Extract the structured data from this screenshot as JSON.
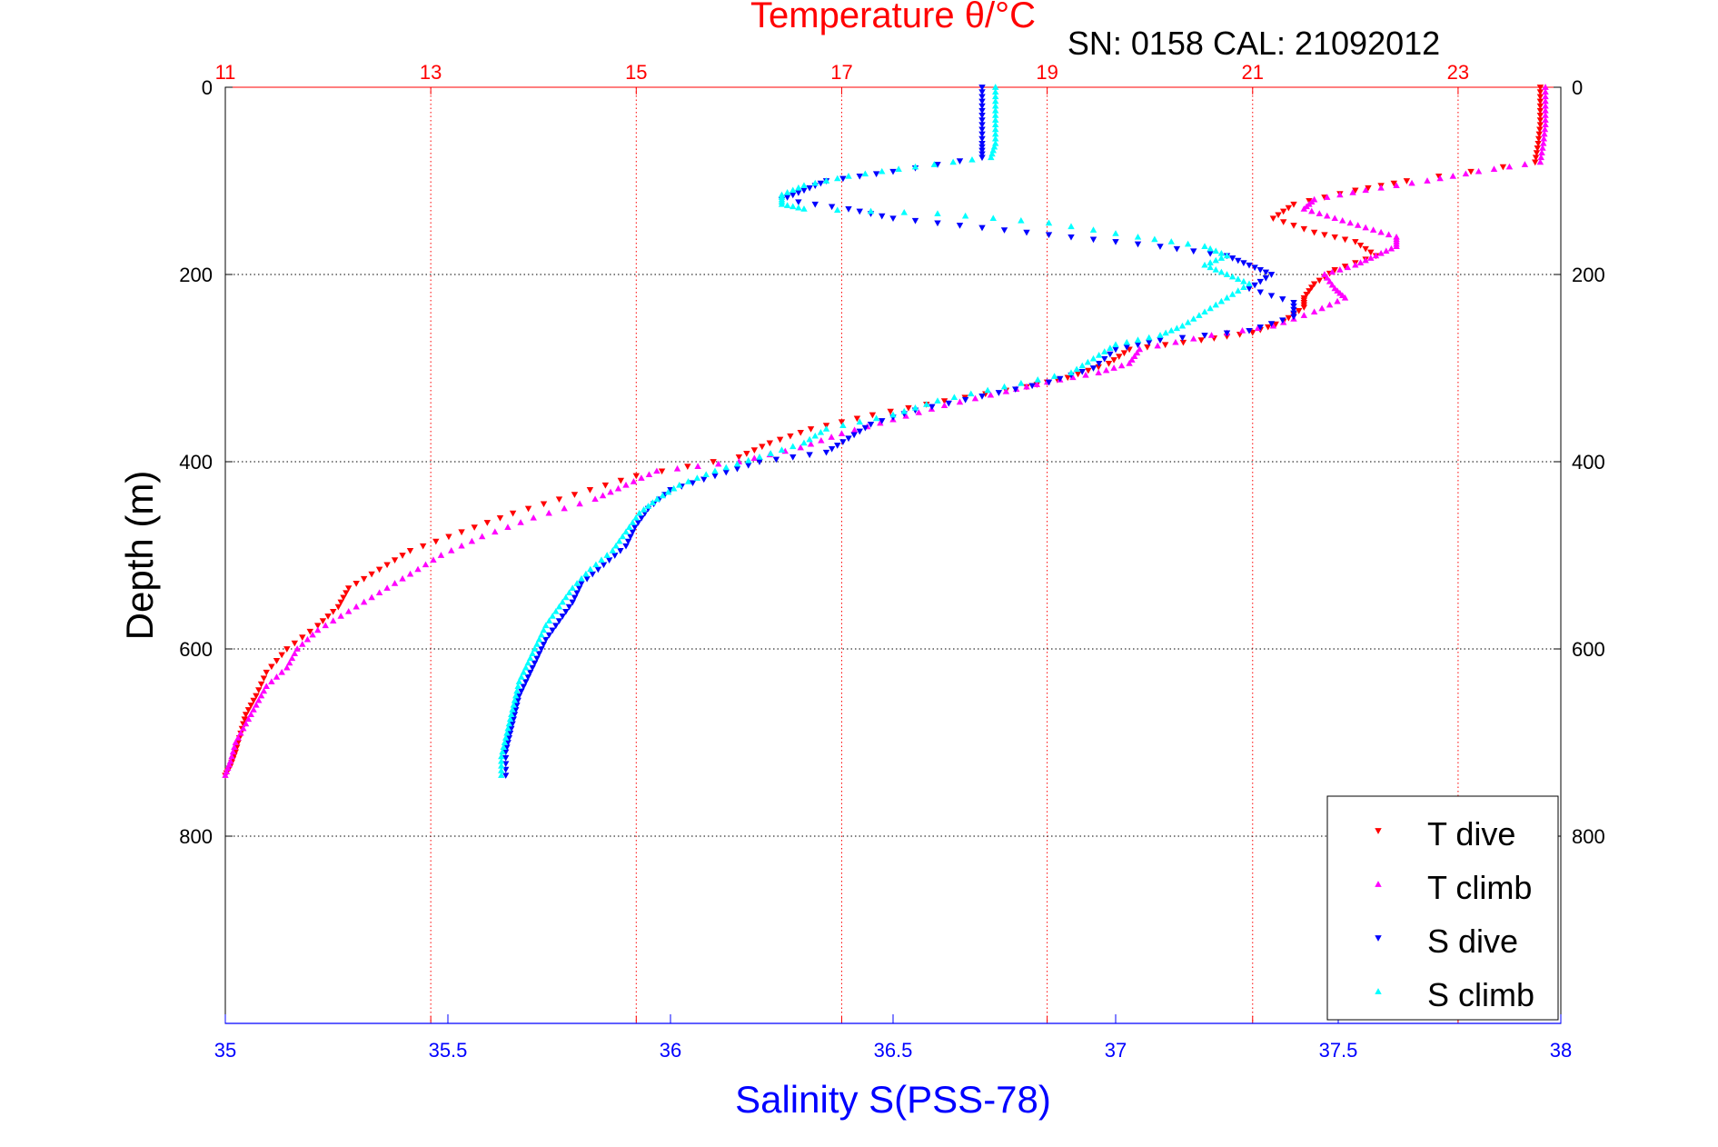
{
  "chart_data": {
    "type": "scatter",
    "title": "Temperature θ/°C",
    "subtitle": "SN: 0158  CAL: 21092012",
    "xlabel": "Salinity S(PSS-78)",
    "ylabel": "Depth (m)",
    "grid": true,
    "legend_position": "bottom-right",
    "colors": {
      "temperature_axis": "#ff0000",
      "salinity_axis": "#0000ff",
      "depth_axis": "#000000"
    },
    "axes": {
      "temperature": {
        "lim": [
          11,
          24
        ],
        "ticks": [
          "11",
          "13",
          "15",
          "17",
          "19",
          "21",
          "23"
        ]
      },
      "salinity": {
        "lim": [
          35,
          38
        ],
        "ticks": [
          "35",
          "35.5",
          "36",
          "36.5",
          "37",
          "37.5",
          "38"
        ]
      },
      "depth": {
        "lim": [
          0,
          1000
        ],
        "reversed": true,
        "ticks": [
          "0",
          "200",
          "400",
          "600",
          "800"
        ]
      }
    },
    "series": [
      {
        "name": "T dive",
        "axis": "temperature",
        "marker": "triangle-down",
        "color": "#ff0000",
        "points": [
          [
            23.8,
            0
          ],
          [
            23.8,
            20
          ],
          [
            23.8,
            40
          ],
          [
            23.78,
            60
          ],
          [
            23.75,
            80
          ],
          [
            22.5,
            100
          ],
          [
            22.0,
            110
          ],
          [
            21.4,
            125
          ],
          [
            21.2,
            140
          ],
          [
            21.6,
            155
          ],
          [
            22.0,
            165
          ],
          [
            22.2,
            180
          ],
          [
            21.8,
            195
          ],
          [
            21.6,
            210
          ],
          [
            21.5,
            225
          ],
          [
            21.5,
            235
          ],
          [
            21.3,
            250
          ],
          [
            21.0,
            262
          ],
          [
            20.5,
            270
          ],
          [
            19.8,
            280
          ],
          [
            19.6,
            295
          ],
          [
            19.2,
            310
          ],
          [
            18.8,
            320
          ],
          [
            18.0,
            335
          ],
          [
            17.3,
            350
          ],
          [
            16.7,
            365
          ],
          [
            16.3,
            380
          ],
          [
            16.0,
            395
          ],
          [
            15.0,
            415
          ],
          [
            14.4,
            435
          ],
          [
            13.8,
            455
          ],
          [
            13.3,
            475
          ],
          [
            12.8,
            495
          ],
          [
            12.5,
            515
          ],
          [
            12.2,
            535
          ],
          [
            12.1,
            555
          ],
          [
            11.9,
            575
          ],
          [
            11.6,
            600
          ],
          [
            11.4,
            625
          ],
          [
            11.3,
            650
          ],
          [
            11.2,
            670
          ],
          [
            11.15,
            690
          ],
          [
            11.1,
            710
          ],
          [
            11.05,
            725
          ],
          [
            11.0,
            735
          ]
        ]
      },
      {
        "name": "T climb",
        "axis": "temperature",
        "marker": "triangle-up",
        "color": "#ff00ff",
        "points": [
          [
            23.85,
            0
          ],
          [
            23.85,
            20
          ],
          [
            23.85,
            40
          ],
          [
            23.83,
            60
          ],
          [
            23.8,
            80
          ],
          [
            23.2,
            90
          ],
          [
            22.7,
            100
          ],
          [
            22.1,
            110
          ],
          [
            21.6,
            120
          ],
          [
            21.5,
            130
          ],
          [
            21.8,
            140
          ],
          [
            22.1,
            150
          ],
          [
            22.4,
            160
          ],
          [
            22.4,
            170
          ],
          [
            22.2,
            180
          ],
          [
            22.0,
            190
          ],
          [
            21.7,
            200
          ],
          [
            21.8,
            215
          ],
          [
            21.9,
            225
          ],
          [
            21.6,
            240
          ],
          [
            21.2,
            255
          ],
          [
            20.6,
            265
          ],
          [
            19.9,
            280
          ],
          [
            19.8,
            295
          ],
          [
            19.5,
            305
          ],
          [
            19.0,
            315
          ],
          [
            18.6,
            325
          ],
          [
            18.0,
            340
          ],
          [
            17.5,
            355
          ],
          [
            17.0,
            370
          ],
          [
            16.6,
            385
          ],
          [
            16.0,
            400
          ],
          [
            15.2,
            410
          ],
          [
            14.9,
            425
          ],
          [
            14.6,
            440
          ],
          [
            14.0,
            460
          ],
          [
            13.5,
            480
          ],
          [
            13.1,
            500
          ],
          [
            12.8,
            520
          ],
          [
            12.5,
            540
          ],
          [
            12.2,
            560
          ],
          [
            11.9,
            580
          ],
          [
            11.7,
            600
          ],
          [
            11.6,
            620
          ],
          [
            11.4,
            640
          ],
          [
            11.3,
            660
          ],
          [
            11.2,
            680
          ],
          [
            11.1,
            700
          ],
          [
            11.05,
            720
          ],
          [
            11.0,
            735
          ]
        ]
      },
      {
        "name": "S dive",
        "axis": "salinity",
        "marker": "triangle-down",
        "color": "#0000ff",
        "points": [
          [
            36.7,
            0
          ],
          [
            36.7,
            20
          ],
          [
            36.7,
            40
          ],
          [
            36.7,
            60
          ],
          [
            36.7,
            75
          ],
          [
            36.5,
            90
          ],
          [
            36.35,
            100
          ],
          [
            36.3,
            110
          ],
          [
            36.25,
            120
          ],
          [
            36.4,
            130
          ],
          [
            36.5,
            140
          ],
          [
            36.7,
            150
          ],
          [
            36.9,
            160
          ],
          [
            37.1,
            170
          ],
          [
            37.25,
            180
          ],
          [
            37.3,
            190
          ],
          [
            37.35,
            200
          ],
          [
            37.3,
            215
          ],
          [
            37.4,
            230
          ],
          [
            37.4,
            245
          ],
          [
            37.3,
            260
          ],
          [
            37.1,
            270
          ],
          [
            37.0,
            280
          ],
          [
            36.95,
            300
          ],
          [
            36.85,
            315
          ],
          [
            36.7,
            330
          ],
          [
            36.55,
            345
          ],
          [
            36.45,
            360
          ],
          [
            36.4,
            375
          ],
          [
            36.35,
            390
          ],
          [
            36.2,
            400
          ],
          [
            36.1,
            415
          ],
          [
            36.0,
            430
          ],
          [
            35.95,
            450
          ],
          [
            35.92,
            470
          ],
          [
            35.9,
            490
          ],
          [
            35.85,
            510
          ],
          [
            35.8,
            530
          ],
          [
            35.78,
            550
          ],
          [
            35.75,
            570
          ],
          [
            35.72,
            590
          ],
          [
            35.7,
            610
          ],
          [
            35.68,
            630
          ],
          [
            35.66,
            650
          ],
          [
            35.65,
            670
          ],
          [
            35.64,
            690
          ],
          [
            35.63,
            710
          ],
          [
            35.63,
            735
          ]
        ]
      },
      {
        "name": "S climb",
        "axis": "salinity",
        "marker": "triangle-up",
        "color": "#00ffff",
        "points": [
          [
            36.73,
            0
          ],
          [
            36.73,
            20
          ],
          [
            36.73,
            40
          ],
          [
            36.73,
            60
          ],
          [
            36.72,
            75
          ],
          [
            36.55,
            85
          ],
          [
            36.4,
            95
          ],
          [
            36.3,
            105
          ],
          [
            36.25,
            115
          ],
          [
            36.25,
            125
          ],
          [
            36.3,
            130
          ],
          [
            36.6,
            135
          ],
          [
            36.85,
            145
          ],
          [
            37.05,
            160
          ],
          [
            37.2,
            170
          ],
          [
            37.25,
            180
          ],
          [
            37.2,
            190
          ],
          [
            37.25,
            200
          ],
          [
            37.3,
            210
          ],
          [
            37.25,
            225
          ],
          [
            37.2,
            240
          ],
          [
            37.15,
            255
          ],
          [
            37.1,
            265
          ],
          [
            37.0,
            275
          ],
          [
            36.95,
            290
          ],
          [
            36.9,
            305
          ],
          [
            36.75,
            320
          ],
          [
            36.6,
            335
          ],
          [
            36.5,
            350
          ],
          [
            36.35,
            365
          ],
          [
            36.3,
            380
          ],
          [
            36.2,
            395
          ],
          [
            36.1,
            410
          ],
          [
            36.02,
            425
          ],
          [
            35.97,
            440
          ],
          [
            35.93,
            455
          ],
          [
            35.9,
            475
          ],
          [
            35.87,
            495
          ],
          [
            35.82,
            515
          ],
          [
            35.78,
            535
          ],
          [
            35.75,
            555
          ],
          [
            35.72,
            575
          ],
          [
            35.7,
            595
          ],
          [
            35.68,
            615
          ],
          [
            35.66,
            635
          ],
          [
            35.65,
            655
          ],
          [
            35.64,
            675
          ],
          [
            35.63,
            695
          ],
          [
            35.62,
            715
          ],
          [
            35.62,
            735
          ]
        ]
      }
    ]
  }
}
